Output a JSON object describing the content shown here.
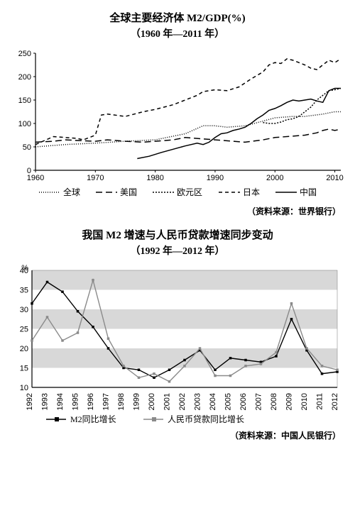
{
  "chart1": {
    "title": "全球主要经济体 M2/GDP(%)",
    "subtitle": "（1960 年—2011 年）",
    "source": "（资料来源：世界银行）",
    "type": "line",
    "background": "#ffffff",
    "xmin": 1960,
    "xmax": 2011,
    "xtick_step": 10,
    "ymin": 0,
    "ymax": 250,
    "ytick_step": 50,
    "xticks": [
      1960,
      1970,
      1980,
      1990,
      2000,
      2010
    ],
    "yticks": [
      0,
      50,
      100,
      150,
      200,
      250
    ],
    "axis_color": "#000000",
    "line_width": 1.5,
    "series": [
      {
        "name": "全球",
        "style": "dot-dense",
        "color": "#000000",
        "label": "全球",
        "data": [
          [
            1960,
            50
          ],
          [
            1965,
            55
          ],
          [
            1970,
            58
          ],
          [
            1975,
            62
          ],
          [
            1980,
            65
          ],
          [
            1985,
            78
          ],
          [
            1988,
            95
          ],
          [
            1990,
            95
          ],
          [
            1992,
            92
          ],
          [
            1995,
            95
          ],
          [
            1998,
            105
          ],
          [
            2000,
            112
          ],
          [
            2003,
            115
          ],
          [
            2005,
            115
          ],
          [
            2008,
            120
          ],
          [
            2010,
            125
          ],
          [
            2011,
            125
          ]
        ]
      },
      {
        "name": "美国",
        "style": "dash-long",
        "color": "#000000",
        "label": "美国",
        "data": [
          [
            1960,
            60
          ],
          [
            1963,
            62
          ],
          [
            1965,
            65
          ],
          [
            1968,
            63
          ],
          [
            1970,
            62
          ],
          [
            1972,
            65
          ],
          [
            1975,
            62
          ],
          [
            1978,
            60
          ],
          [
            1980,
            62
          ],
          [
            1983,
            65
          ],
          [
            1985,
            70
          ],
          [
            1987,
            68
          ],
          [
            1990,
            65
          ],
          [
            1993,
            62
          ],
          [
            1995,
            60
          ],
          [
            1998,
            65
          ],
          [
            2000,
            70
          ],
          [
            2003,
            73
          ],
          [
            2005,
            75
          ],
          [
            2007,
            80
          ],
          [
            2008,
            85
          ],
          [
            2009,
            88
          ],
          [
            2010,
            85
          ],
          [
            2011,
            88
          ]
        ]
      },
      {
        "name": "欧元区",
        "style": "dot-heavy",
        "color": "#000000",
        "label": "欧元区",
        "data": [
          [
            1998,
            102
          ],
          [
            1999,
            100
          ],
          [
            2000,
            100
          ],
          [
            2001,
            103
          ],
          [
            2002,
            108
          ],
          [
            2003,
            110
          ],
          [
            2004,
            115
          ],
          [
            2005,
            125
          ],
          [
            2006,
            135
          ],
          [
            2007,
            150
          ],
          [
            2008,
            160
          ],
          [
            2009,
            170
          ],
          [
            2010,
            172
          ],
          [
            2011,
            175
          ]
        ]
      },
      {
        "name": "日本",
        "style": "dash-short",
        "color": "#000000",
        "label": "日本",
        "data": [
          [
            1960,
            55
          ],
          [
            1963,
            72
          ],
          [
            1965,
            70
          ],
          [
            1967,
            68
          ],
          [
            1968,
            65
          ],
          [
            1970,
            75
          ],
          [
            1971,
            118
          ],
          [
            1972,
            120
          ],
          [
            1975,
            115
          ],
          [
            1978,
            125
          ],
          [
            1980,
            130
          ],
          [
            1983,
            140
          ],
          [
            1985,
            150
          ],
          [
            1987,
            160
          ],
          [
            1988,
            168
          ],
          [
            1990,
            172
          ],
          [
            1992,
            170
          ],
          [
            1994,
            178
          ],
          [
            1996,
            195
          ],
          [
            1998,
            210
          ],
          [
            1999,
            225
          ],
          [
            2000,
            230
          ],
          [
            2001,
            228
          ],
          [
            2002,
            238
          ],
          [
            2003,
            235
          ],
          [
            2005,
            225
          ],
          [
            2006,
            218
          ],
          [
            2007,
            215
          ],
          [
            2008,
            225
          ],
          [
            2009,
            235
          ],
          [
            2010,
            230
          ],
          [
            2011,
            238
          ]
        ]
      },
      {
        "name": "中国",
        "style": "solid",
        "color": "#000000",
        "label": "中国",
        "data": [
          [
            1977,
            25
          ],
          [
            1979,
            30
          ],
          [
            1981,
            38
          ],
          [
            1983,
            45
          ],
          [
            1985,
            52
          ],
          [
            1987,
            58
          ],
          [
            1988,
            55
          ],
          [
            1989,
            60
          ],
          [
            1990,
            70
          ],
          [
            1991,
            78
          ],
          [
            1992,
            80
          ],
          [
            1993,
            85
          ],
          [
            1994,
            88
          ],
          [
            1995,
            92
          ],
          [
            1996,
            100
          ],
          [
            1997,
            110
          ],
          [
            1998,
            118
          ],
          [
            1999,
            128
          ],
          [
            2000,
            132
          ],
          [
            2001,
            138
          ],
          [
            2002,
            145
          ],
          [
            2003,
            150
          ],
          [
            2004,
            148
          ],
          [
            2005,
            150
          ],
          [
            2006,
            152
          ],
          [
            2007,
            148
          ],
          [
            2008,
            145
          ],
          [
            2009,
            170
          ],
          [
            2010,
            175
          ],
          [
            2011,
            175
          ]
        ]
      }
    ]
  },
  "chart2": {
    "title": "我国 M2 增速与人民币贷款增速同步变动",
    "subtitle": "（1992 年—2012 年）",
    "source": "（资料来源：中国人民银行）",
    "type": "line",
    "background": "#ffffff",
    "grid_band_color": "#d8d8d8",
    "axis_color": "#000000",
    "xmin": 1992,
    "xmax": 2012,
    "ymin": 10,
    "ymax": 40,
    "ytick_step": 5,
    "yticks": [
      10,
      15,
      20,
      25,
      30,
      35,
      40
    ],
    "xticks": [
      1992,
      1993,
      1994,
      1995,
      1996,
      1997,
      1998,
      1999,
      2000,
      2001,
      2002,
      2003,
      2004,
      2005,
      2006,
      2007,
      2008,
      2009,
      2010,
      2011,
      2012
    ],
    "marker_size": 3.5,
    "line_width": 1.4,
    "series": [
      {
        "name": "M2同比增长",
        "color": "#000000",
        "marker": "square",
        "label": "M2同比增长",
        "data": [
          [
            1992,
            31.5
          ],
          [
            1993,
            37
          ],
          [
            1994,
            34.5
          ],
          [
            1995,
            29.5
          ],
          [
            1996,
            25.5
          ],
          [
            1997,
            20
          ],
          [
            1998,
            15
          ],
          [
            1999,
            14.5
          ],
          [
            2000,
            12.5
          ],
          [
            2001,
            14.5
          ],
          [
            2002,
            17
          ],
          [
            2003,
            19.5
          ],
          [
            2004,
            14.5
          ],
          [
            2005,
            17.5
          ],
          [
            2006,
            17
          ],
          [
            2007,
            16.5
          ],
          [
            2008,
            18
          ],
          [
            2009,
            27.5
          ],
          [
            2010,
            19.5
          ],
          [
            2011,
            13.5
          ],
          [
            2012,
            14
          ]
        ]
      },
      {
        "name": "人民币贷款同比增长",
        "color": "#8a8a8a",
        "marker": "square",
        "label": "人民币贷款同比增长",
        "data": [
          [
            1992,
            22
          ],
          [
            1993,
            28
          ],
          [
            1994,
            22
          ],
          [
            1995,
            24
          ],
          [
            1996,
            37.5
          ],
          [
            1997,
            22.5
          ],
          [
            1998,
            15.5
          ],
          [
            1999,
            12.5
          ],
          [
            2000,
            13.5
          ],
          [
            2001,
            11.5
          ],
          [
            2002,
            15.5
          ],
          [
            2003,
            20
          ],
          [
            2004,
            13
          ],
          [
            2005,
            13
          ],
          [
            2006,
            15.5
          ],
          [
            2007,
            16
          ],
          [
            2008,
            19
          ],
          [
            2009,
            31.5
          ],
          [
            2010,
            20
          ],
          [
            2011,
            15.5
          ],
          [
            2012,
            14.5
          ]
        ]
      }
    ]
  }
}
